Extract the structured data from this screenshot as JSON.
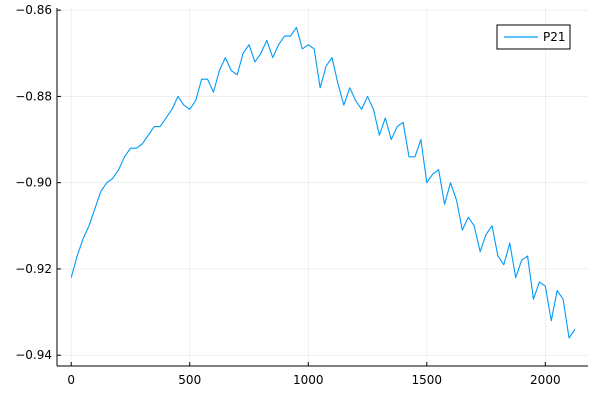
{
  "chart_data": {
    "type": "line",
    "title": "",
    "xlabel": "",
    "ylabel": "",
    "xlim": [
      -60,
      2180
    ],
    "ylim": [
      -0.9425,
      -0.8595
    ],
    "x_ticks": [
      0,
      500,
      1000,
      1500,
      2000
    ],
    "x_tick_labels": [
      "0",
      "500",
      "1000",
      "1500",
      "2000"
    ],
    "y_ticks": [
      -0.94,
      -0.92,
      -0.9,
      -0.88,
      -0.86
    ],
    "y_tick_labels": [
      "−0.94",
      "−0.92",
      "−0.90",
      "−0.88",
      "−0.86"
    ],
    "grid": true,
    "legend": {
      "position": "top-right",
      "entries": [
        "P21"
      ]
    },
    "series": [
      {
        "name": "P21",
        "color": "#009af9",
        "x": [
          0,
          25,
          50,
          75,
          100,
          125,
          150,
          175,
          200,
          225,
          250,
          275,
          300,
          325,
          350,
          375,
          400,
          425,
          450,
          475,
          500,
          525,
          550,
          575,
          600,
          625,
          650,
          675,
          700,
          725,
          750,
          775,
          800,
          825,
          850,
          875,
          900,
          925,
          950,
          975,
          1000,
          1025,
          1050,
          1075,
          1100,
          1125,
          1150,
          1175,
          1200,
          1225,
          1250,
          1275,
          1300,
          1325,
          1350,
          1375,
          1400,
          1425,
          1450,
          1475,
          1500,
          1525,
          1550,
          1575,
          1600,
          1625,
          1650,
          1675,
          1700,
          1725,
          1750,
          1775,
          1800,
          1825,
          1850,
          1875,
          1900,
          1925,
          1950,
          1975,
          2000,
          2025,
          2050,
          2075,
          2100,
          2125
        ],
        "y": [
          -0.922,
          -0.917,
          -0.913,
          -0.91,
          -0.906,
          -0.902,
          -0.9,
          -0.899,
          -0.897,
          -0.894,
          -0.892,
          -0.892,
          -0.891,
          -0.889,
          -0.887,
          -0.887,
          -0.885,
          -0.883,
          -0.88,
          -0.882,
          -0.883,
          -0.881,
          -0.876,
          -0.876,
          -0.879,
          -0.874,
          -0.871,
          -0.874,
          -0.875,
          -0.87,
          -0.868,
          -0.872,
          -0.87,
          -0.867,
          -0.871,
          -0.868,
          -0.866,
          -0.866,
          -0.864,
          -0.869,
          -0.868,
          -0.869,
          -0.878,
          -0.873,
          -0.871,
          -0.877,
          -0.882,
          -0.878,
          -0.881,
          -0.883,
          -0.88,
          -0.883,
          -0.889,
          -0.885,
          -0.89,
          -0.887,
          -0.886,
          -0.894,
          -0.894,
          -0.89,
          -0.9,
          -0.898,
          -0.897,
          -0.905,
          -0.9,
          -0.904,
          -0.911,
          -0.908,
          -0.91,
          -0.916,
          -0.912,
          -0.91,
          -0.917,
          -0.919,
          -0.914,
          -0.922,
          -0.918,
          -0.917,
          -0.927,
          -0.923,
          -0.924,
          -0.932,
          -0.925,
          -0.927,
          -0.936,
          -0.934
        ]
      }
    ]
  }
}
